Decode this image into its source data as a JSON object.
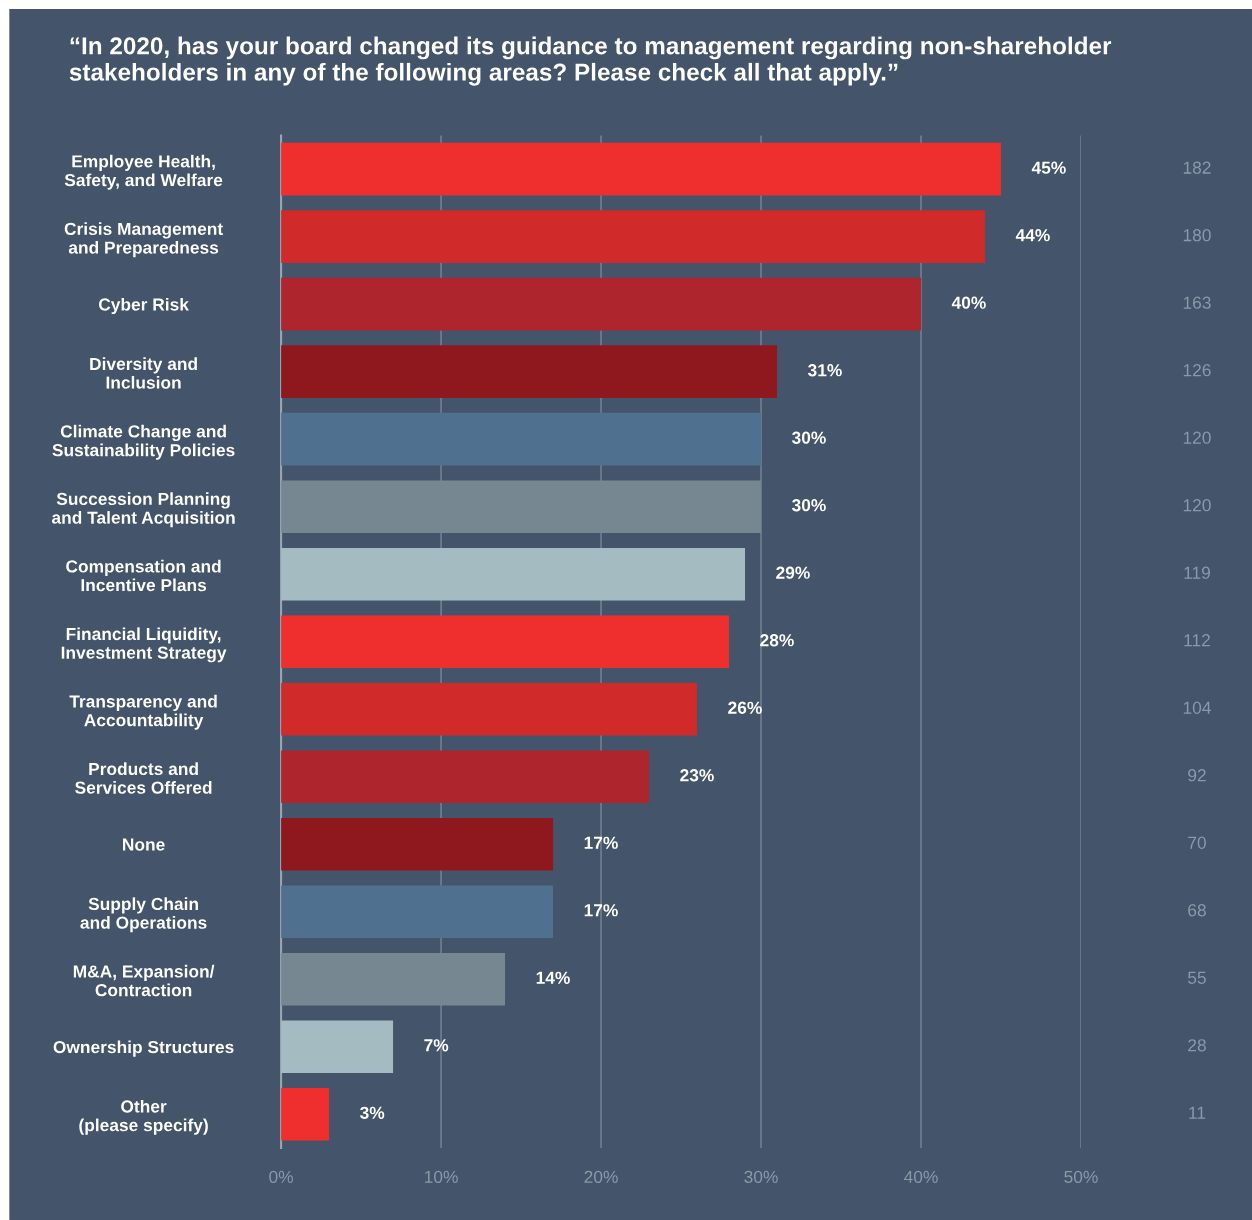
{
  "chart_data": {
    "type": "bar",
    "orientation": "horizontal",
    "title": "“In 2020, has your board changed its guidance to management regarding non-shareholder stakeholders in any of the following areas? Please check all that apply.”",
    "categories": [
      "Employee Health,\nSafety, and Welfare",
      "Crisis Management\nand Preparedness",
      "Cyber Risk",
      "Diversity and\nInclusion",
      "Climate Change and\nSustainability Policies",
      "Succession Planning\nand Talent Acquisition",
      "Compensation and\nIncentive Plans",
      "Financial Liquidity,\nInvestment Strategy",
      "Transparency and\nAccountability",
      "Products and\nServices Offered",
      "None",
      "Supply Chain\nand Operations",
      "M&A, Expansion/\nContraction",
      "Ownership Structures",
      "Other\n(please specify)"
    ],
    "values": [
      45,
      44,
      40,
      31,
      30,
      30,
      29,
      28,
      26,
      23,
      17,
      17,
      14,
      7,
      3
    ],
    "colors": [
      "#ef2e2e",
      "#d12a2a",
      "#ae252e",
      "#8e181d",
      "#50708f",
      "#778792",
      "#a5bbc2",
      "#ef2e2e",
      "#d12a2a",
      "#ae252e",
      "#8e181d",
      "#50708f",
      "#778792",
      "#a5bbc2",
      "#ef2e2e"
    ],
    "value_labels": [
      "45%",
      "44%",
      "40%",
      "31%",
      "30%",
      "30%",
      "29%",
      "28%",
      "26%",
      "23%",
      "17%",
      "17%",
      "14%",
      "7%",
      "3%"
    ],
    "annotations": [
      "182",
      "180",
      "163",
      "126",
      "120",
      "120",
      "119",
      "112",
      "104",
      "92",
      "70",
      "68",
      "55",
      "28",
      "11"
    ],
    "xlim": [
      0,
      50
    ],
    "xticks": [
      {
        "value": 0,
        "label": "0%"
      },
      {
        "value": 10,
        "label": "10%"
      },
      {
        "value": 20,
        "label": "20%"
      },
      {
        "value": 30,
        "label": "30%"
      },
      {
        "value": 40,
        "label": "40%"
      },
      {
        "value": 50,
        "label": "50%"
      }
    ],
    "grid": "x",
    "legend": false
  }
}
